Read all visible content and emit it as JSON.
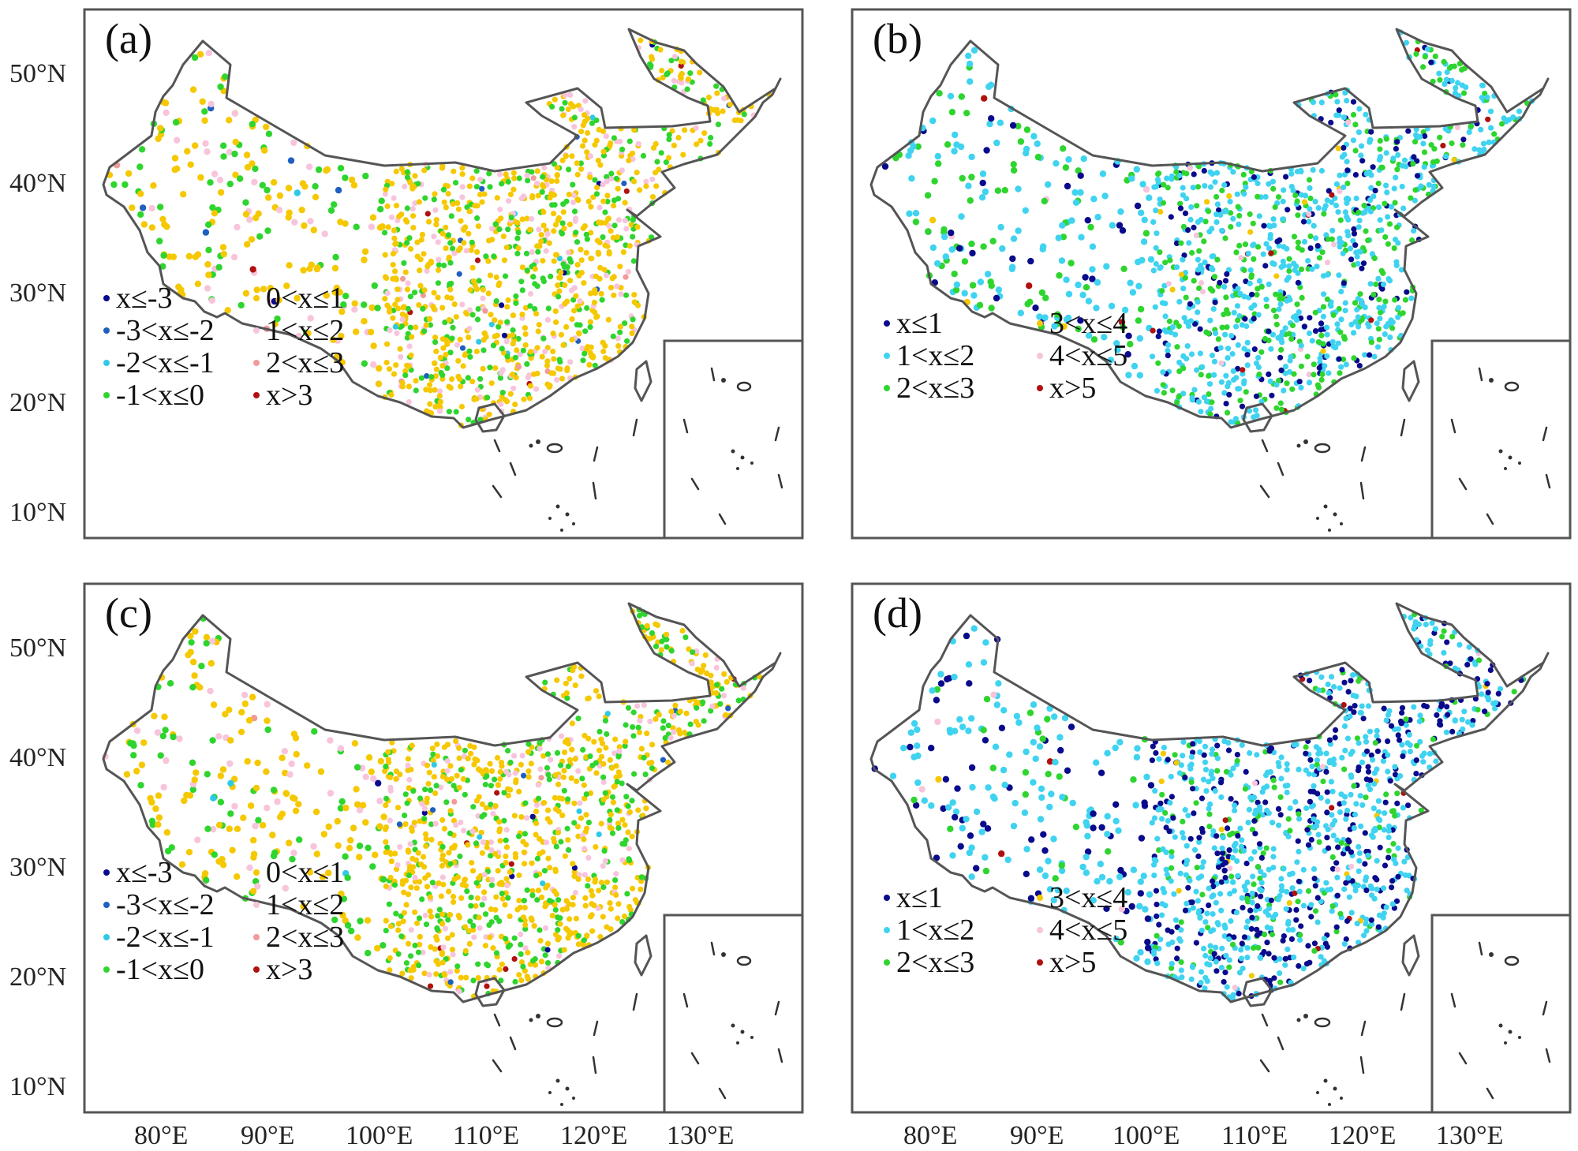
{
  "figure": {
    "y_ticks": [
      "50°N",
      "40°N",
      "30°N",
      "20°N",
      "10°N"
    ],
    "x_ticks": [
      "80°E",
      "90°E",
      "100°E",
      "110°E",
      "120°E",
      "130°E"
    ]
  },
  "panels": [
    {
      "id": "a",
      "label": "(a)",
      "legend": [
        {
          "text": "x≤-3",
          "color": "#0a0a8c"
        },
        {
          "text": "-3<x≤-2",
          "color": "#1f5fbf"
        },
        {
          "text": "-2<x≤-1",
          "color": "#2ec9e6"
        },
        {
          "text": "-1<x≤0",
          "color": "#2ed52e"
        },
        {
          "text": "0<x≤1",
          "color": "#f5c800"
        },
        {
          "text": "1<x≤2",
          "color": "#f7c4dc"
        },
        {
          "text": "2<x≤3",
          "color": "#f29a9a"
        },
        {
          "text": "x>3",
          "color": "#b01010"
        }
      ],
      "dominant_classes": [
        "0<x≤1",
        "-1<x≤0",
        "1<x≤2"
      ]
    },
    {
      "id": "b",
      "label": "(b)",
      "legend": [
        {
          "text": "x≤1",
          "color": "#0a0a8c"
        },
        {
          "text": "1<x≤2",
          "color": "#3fd3f0"
        },
        {
          "text": "2<x≤3",
          "color": "#2ed52e"
        },
        {
          "text": "3<x≤4",
          "color": "#f5c800"
        },
        {
          "text": "4<x≤5",
          "color": "#f7c4dc"
        },
        {
          "text": "x>5",
          "color": "#b01010"
        }
      ],
      "dominant_classes": [
        "1<x≤2",
        "2<x≤3",
        "x≤1"
      ]
    },
    {
      "id": "c",
      "label": "(c)",
      "legend": [
        {
          "text": "x≤-3",
          "color": "#0a0a8c"
        },
        {
          "text": "-3<x≤-2",
          "color": "#1f5fbf"
        },
        {
          "text": "-2<x≤-1",
          "color": "#2ec9e6"
        },
        {
          "text": "-1<x≤0",
          "color": "#2ed52e"
        },
        {
          "text": "0<x≤1",
          "color": "#f5c800"
        },
        {
          "text": "1<x≤2",
          "color": "#f7c4dc"
        },
        {
          "text": "2<x≤3",
          "color": "#f29a9a"
        },
        {
          "text": "x>3",
          "color": "#b01010"
        }
      ],
      "dominant_classes": [
        "0<x≤1",
        "-1<x≤0",
        "1<x≤2"
      ]
    },
    {
      "id": "d",
      "label": "(d)",
      "legend": [
        {
          "text": "x≤1",
          "color": "#0a0a8c"
        },
        {
          "text": "1<x≤2",
          "color": "#3fd3f0"
        },
        {
          "text": "2<x≤3",
          "color": "#2ed52e"
        },
        {
          "text": "3<x≤4",
          "color": "#f5c800"
        },
        {
          "text": "4<x≤5",
          "color": "#f7c4dc"
        },
        {
          "text": "x>5",
          "color": "#b01010"
        }
      ],
      "dominant_classes": [
        "1<x≤2",
        "x≤1",
        "2<x≤3"
      ]
    }
  ]
}
